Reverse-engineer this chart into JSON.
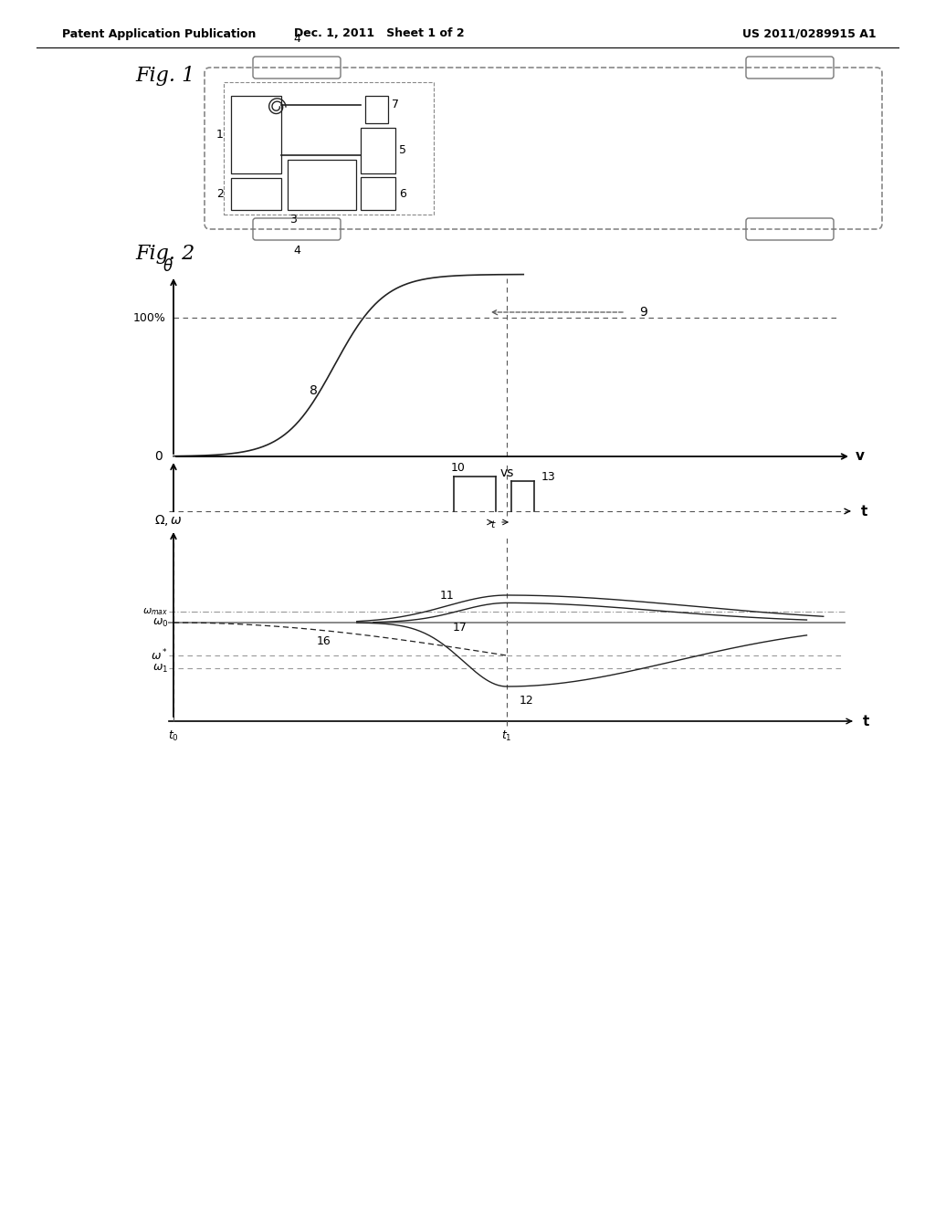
{
  "bg_color": "#ffffff",
  "header_left": "Patent Application Publication",
  "header_mid": "Dec. 1, 2011   Sheet 1 of 2",
  "header_right": "US 2011/0289915 A1",
  "fig1_label": "Fig. 1",
  "fig2_label": "Fig. 2",
  "line_color": "#555555",
  "dark_color": "#222222"
}
